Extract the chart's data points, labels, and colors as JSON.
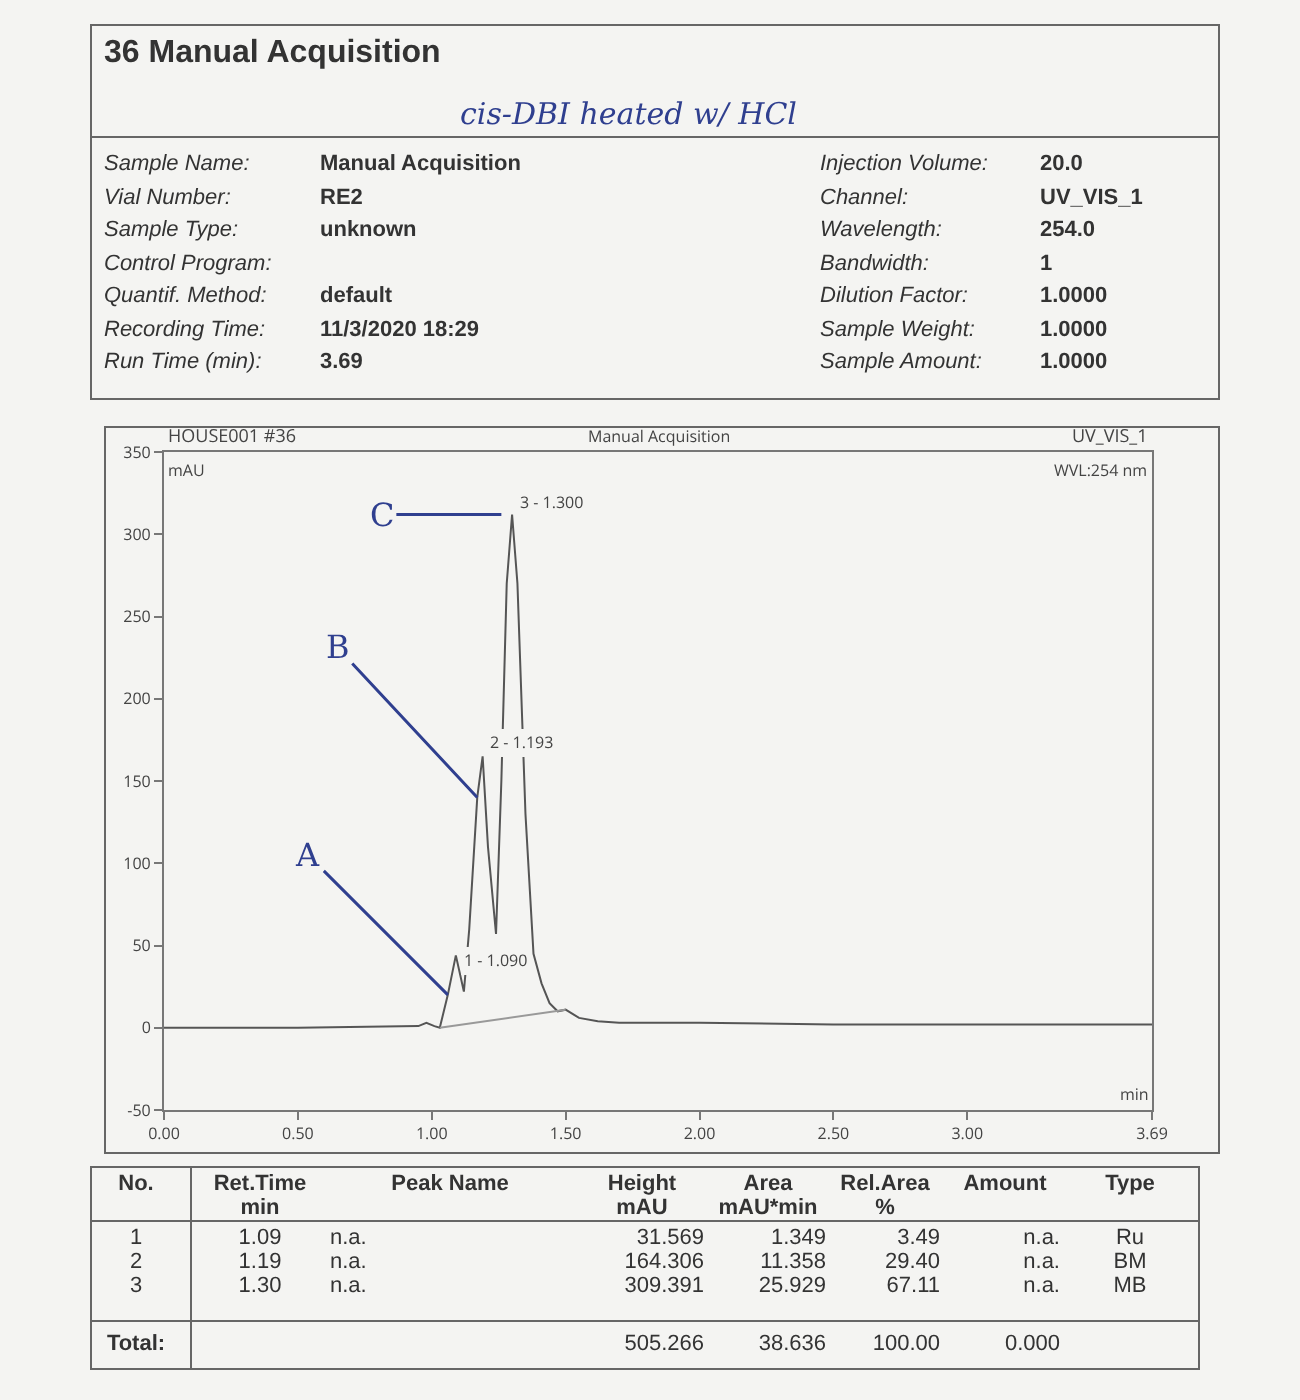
{
  "chart_data": {
    "type": "line",
    "x": [
      0,
      0.5,
      0.95,
      0.98,
      1.01,
      1.03,
      1.06,
      1.09,
      1.12,
      1.14,
      1.17,
      1.19,
      1.21,
      1.24,
      1.26,
      1.28,
      1.3,
      1.32,
      1.35,
      1.38,
      1.41,
      1.44,
      1.47,
      1.5,
      1.55,
      1.62,
      1.7,
      2,
      2.5,
      3,
      3.69
    ],
    "series": [
      {
        "color": "#555555",
        "values": [
          0,
          0,
          1,
          3,
          1,
          0,
          20,
          44,
          22,
          60,
          140,
          165,
          110,
          57,
          150,
          270,
          312,
          270,
          130,
          45,
          27,
          15,
          10,
          11,
          6,
          4,
          3,
          3,
          2,
          2,
          2
        ]
      },
      {
        "color": "#999999",
        "x": [
          1.03,
          1.5
        ],
        "values": [
          0,
          11
        ]
      }
    ],
    "xlim": [
      0,
      3.69
    ],
    "xticks": [
      {
        "value": 0,
        "label": "0.00"
      },
      {
        "value": 0.5,
        "label": "0.50"
      },
      {
        "value": 1,
        "label": "1.00"
      },
      {
        "value": 1.5,
        "label": "1.50"
      },
      {
        "value": 2,
        "label": "2.00"
      },
      {
        "value": 2.5,
        "label": "2.50"
      },
      {
        "value": 3,
        "label": "3.00"
      },
      {
        "value": 3.69,
        "label": "3.69"
      }
    ],
    "ylim": [
      -50,
      350
    ],
    "yticks": [
      -50,
      0,
      50,
      100,
      150,
      200,
      250,
      300,
      350
    ],
    "grid": false,
    "marker": "none",
    "line_style": "solid",
    "annotations": [
      "36 Manual Acquisition",
      "cis-DBI heated w/ HCl",
      "Sample Name:",
      "Manual Acquisition",
      "Injection Volume:",
      "20.0",
      "Vial Number:",
      "RE2",
      "Channel:",
      "UV_VIS_1",
      "Sample Type:",
      "unknown",
      "Wavelength:",
      "254.0",
      "Control Program:",
      "Bandwidth:",
      "1",
      "Quantif. Method:",
      "default",
      "Dilution Factor:",
      "1.0000",
      "Recording Time:",
      "11/3/2020 18:29",
      "Sample Weight:",
      "1.0000",
      "Run Time (min):",
      "3.69",
      "Sample Amount:",
      "1.0000",
      "HOUSE001 #36",
      "mAU",
      "Manual Acquisition",
      "UV_VIS_1",
      "WVL:254 nm",
      "min",
      {
        "text": "3 - 1.300",
        "x": 1.3,
        "y": 309.391
      },
      {
        "text": "2 - 1.193",
        "x": 1.19,
        "y": 164.306
      },
      {
        "text": "1 - 1.090",
        "x": 1.09,
        "y": 31.569
      },
      {
        "text": "C",
        "x": 1.26,
        "y": 312
      },
      {
        "text": "B",
        "x": 1.17,
        "y": 140
      },
      {
        "text": "A",
        "x": 1.06,
        "y": 20
      },
      "No.",
      "Ret.Time",
      "Peak Name",
      "Height",
      "Area",
      "Rel.Area",
      "Amount",
      "Type",
      "min",
      "mAU",
      "mAU*min",
      "%",
      "1",
      "1.09",
      "n.a.",
      "31.569",
      "1.349",
      "3.49",
      "n.a.",
      "Ru",
      "2",
      "1.19",
      "n.a.",
      "164.306",
      "11.358",
      "29.40",
      "n.a.",
      "BM",
      "3",
      "1.30",
      "n.a.",
      "309.391",
      "25.929",
      "67.11",
      "n.a.",
      "MB",
      "Total:",
      "505.266",
      "38.636",
      "100.00",
      "0.000"
    ]
  }
}
